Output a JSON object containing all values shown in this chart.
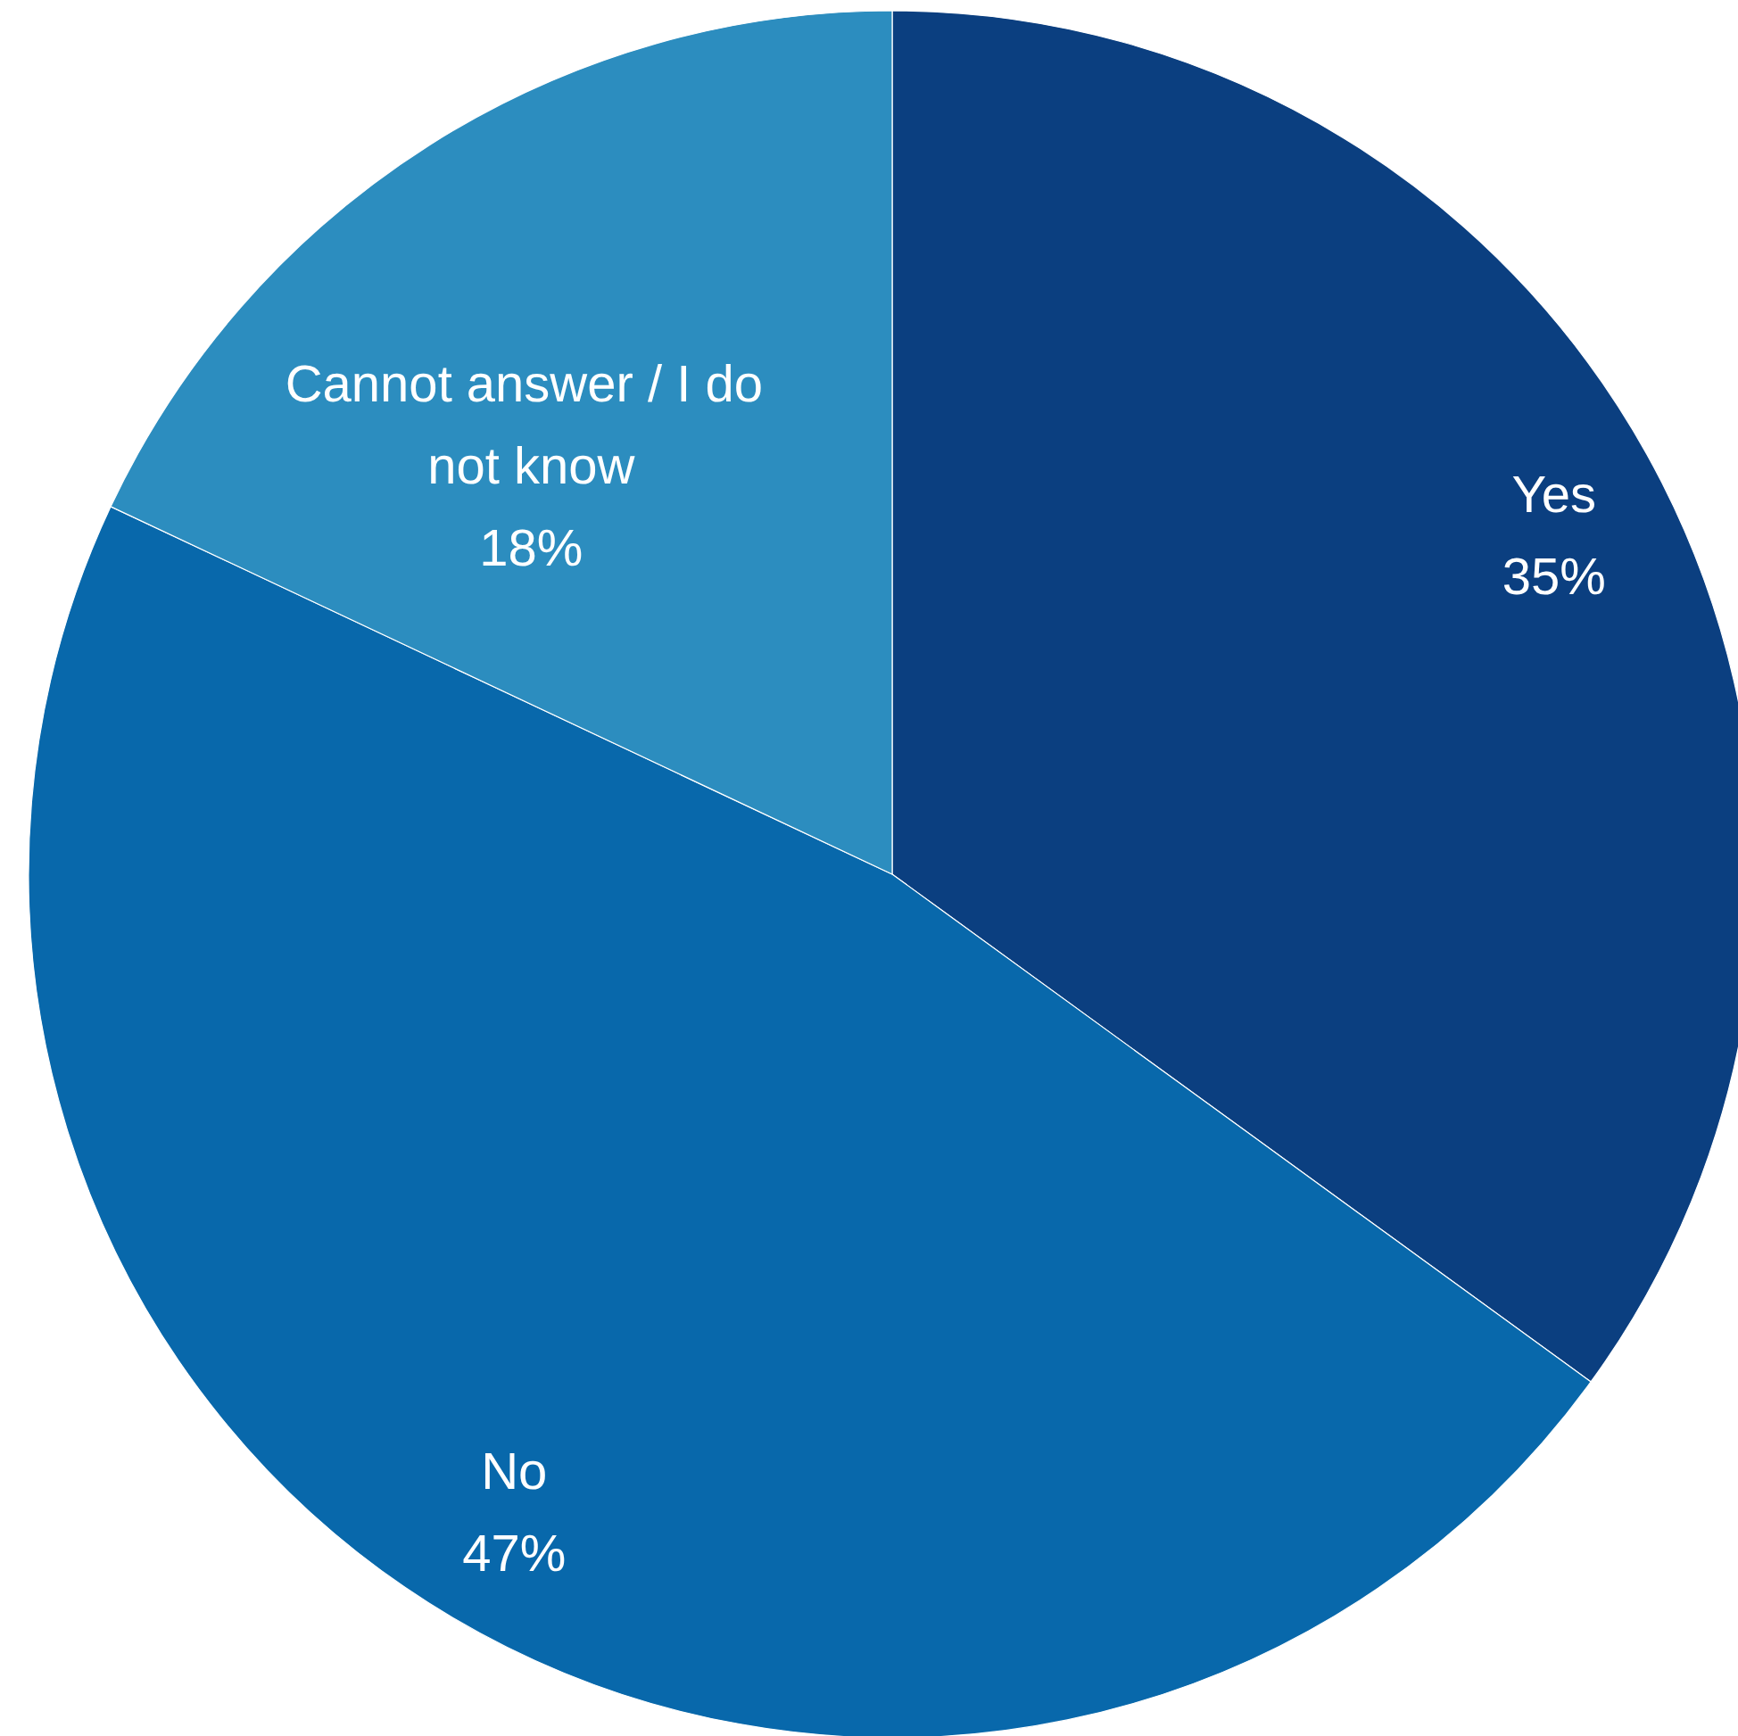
{
  "chart_data": {
    "type": "pie",
    "categories": [
      "Yes",
      "No",
      "Cannot answer / I do not know"
    ],
    "values": [
      35,
      47,
      18
    ],
    "colors": [
      "#0b3f80",
      "#0868ab",
      "#2c8dbf"
    ],
    "value_labels": [
      "35%",
      "47%",
      "18%"
    ]
  }
}
